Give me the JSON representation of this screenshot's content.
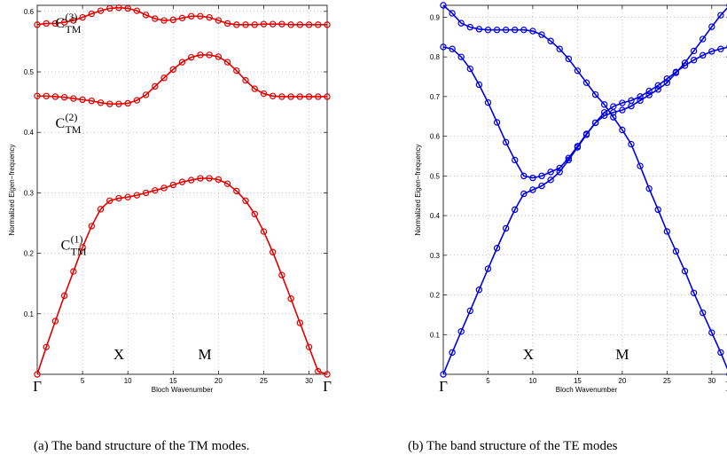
{
  "chart_data": [
    {
      "type": "line",
      "caption": "(a) The band structure of the TM modes.",
      "xlabel": "Bloch Wavenumber",
      "ylabel": "Normalized Eigen−frequency",
      "xlim": [
        0,
        32
      ],
      "ylim": [
        0,
        0.61
      ],
      "xticks": [
        5,
        10,
        15,
        20,
        25,
        30
      ],
      "yticks": [
        0.1,
        0.2,
        0.3,
        0.4,
        0.5,
        0.6
      ],
      "grid": true,
      "color": "#e00000",
      "symmetry_labels": [
        {
          "text": "Γ",
          "x": 0
        },
        {
          "text": "X",
          "x": 9,
          "inside": true
        },
        {
          "text": "M",
          "x": 18.5,
          "inside": true
        },
        {
          "text": "Γ",
          "x": 32
        }
      ],
      "annotations": [
        {
          "base": "C",
          "sup": "(3)",
          "sub": "TM",
          "x": 2.0,
          "y": 0.573
        },
        {
          "base": "C",
          "sup": "(2)",
          "sub": "TM",
          "x": 2.0,
          "y": 0.408
        },
        {
          "base": "C",
          "sup": "(1)",
          "sub": "TM",
          "x": 2.6,
          "y": 0.206
        }
      ],
      "x": [
        0,
        1,
        2,
        3,
        4,
        5,
        6,
        7,
        8,
        9,
        10,
        11,
        12,
        13,
        14,
        15,
        16,
        17,
        18,
        19,
        20,
        21,
        22,
        23,
        24,
        25,
        26,
        27,
        28,
        29,
        30,
        31,
        32
      ],
      "series": [
        {
          "values": [
            0,
            0.045,
            0.088,
            0.13,
            0.17,
            0.21,
            0.245,
            0.273,
            0.287,
            0.291,
            0.293,
            0.296,
            0.3,
            0.304,
            0.308,
            0.313,
            0.318,
            0.321,
            0.324,
            0.324,
            0.322,
            0.315,
            0.303,
            0.287,
            0.265,
            0.236,
            0.202,
            0.164,
            0.125,
            0.085,
            0.045,
            0.005,
            0.0
          ]
        },
        {
          "values": [
            0.46,
            0.46,
            0.459,
            0.458,
            0.456,
            0.454,
            0.452,
            0.449,
            0.447,
            0.447,
            0.448,
            0.453,
            0.462,
            0.476,
            0.49,
            0.504,
            0.516,
            0.524,
            0.528,
            0.528,
            0.525,
            0.516,
            0.502,
            0.486,
            0.472,
            0.464,
            0.46,
            0.459,
            0.459,
            0.459,
            0.459,
            0.459,
            0.459
          ]
        },
        {
          "values": [
            0.578,
            0.58,
            0.58,
            0.582,
            0.585,
            0.59,
            0.596,
            0.601,
            0.605,
            0.606,
            0.605,
            0.601,
            0.594,
            0.588,
            0.585,
            0.586,
            0.589,
            0.592,
            0.592,
            0.59,
            0.585,
            0.58,
            0.578,
            0.578,
            0.578,
            0.579,
            0.579,
            0.579,
            0.578,
            0.578,
            0.578,
            0.578,
            0.578
          ]
        }
      ]
    },
    {
      "type": "line",
      "caption": "(b) The band structure of the TE modes",
      "xlabel": "Bloch Wavenumber",
      "ylabel": "Normalized Eigen−frequency",
      "xlim": [
        0,
        32
      ],
      "ylim": [
        0,
        0.93
      ],
      "xticks": [
        5,
        10,
        15,
        20,
        25,
        30
      ],
      "yticks": [
        0.1,
        0.2,
        0.3,
        0.4,
        0.5,
        0.6,
        0.7,
        0.8,
        0.9
      ],
      "grid": true,
      "color": "#0000e0",
      "symmetry_labels": [
        {
          "text": "Γ",
          "x": 0
        },
        {
          "text": "X",
          "x": 9.5,
          "inside": true
        },
        {
          "text": "M",
          "x": 20,
          "inside": true
        },
        {
          "text": "Γ",
          "x": 32
        }
      ],
      "annotations": [],
      "x": [
        0,
        1,
        2,
        3,
        4,
        5,
        6,
        7,
        8,
        9,
        10,
        11,
        12,
        13,
        14,
        15,
        16,
        17,
        18,
        19,
        20,
        21,
        22,
        23,
        24,
        25,
        26,
        27,
        28,
        29,
        30,
        31,
        32
      ],
      "series": [
        {
          "values": [
            0,
            0.055,
            0.108,
            0.16,
            0.213,
            0.266,
            0.318,
            0.368,
            0.415,
            0.455,
            0.465,
            0.475,
            0.49,
            0.51,
            0.54,
            0.572,
            0.604,
            0.634,
            0.66,
            0.675,
            0.684,
            0.69,
            0.7,
            0.714,
            0.728,
            0.745,
            0.762,
            0.778,
            0.792,
            0.804,
            0.814,
            0.82,
            0.826
          ]
        },
        {
          "values": [
            0.93,
            0.91,
            0.885,
            0.875,
            0.87,
            0.868,
            0.868,
            0.868,
            0.868,
            0.868,
            0.865,
            0.856,
            0.84,
            0.82,
            0.795,
            0.765,
            0.735,
            0.705,
            0.68,
            0.648,
            0.616,
            0.58,
            0.525,
            0.468,
            0.415,
            0.36,
            0.31,
            0.26,
            0.205,
            0.155,
            0.105,
            0.055,
            0.0
          ]
        },
        {
          "values": [
            0.825,
            0.82,
            0.8,
            0.77,
            0.73,
            0.685,
            0.635,
            0.585,
            0.54,
            0.5,
            0.495,
            0.5,
            0.51,
            0.52,
            0.545,
            0.575,
            0.606,
            0.634,
            0.652,
            0.66,
            0.666,
            0.676,
            0.69,
            0.704,
            0.718,
            0.735,
            0.76,
            0.785,
            0.815,
            0.845,
            0.876,
            0.905,
            0.93
          ]
        }
      ]
    }
  ]
}
